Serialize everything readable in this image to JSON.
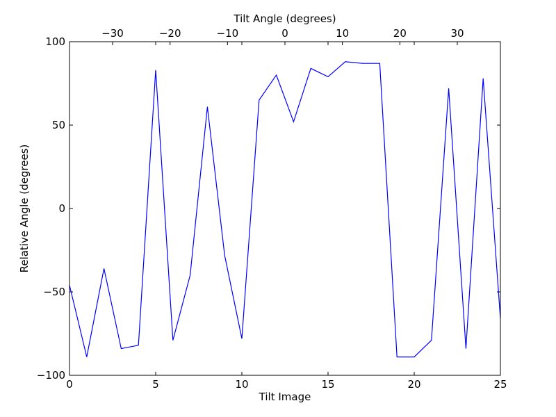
{
  "chart_data": {
    "type": "line",
    "title": "",
    "xlabel": "Tilt Image",
    "ylabel": "Relative Angle (degrees)",
    "top_xlabel": "Tilt Angle (degrees)",
    "xlim": [
      0,
      25
    ],
    "ylim": [
      -100,
      100
    ],
    "top_xlim": [
      -37.5,
      37.5
    ],
    "grid": false,
    "line_color": "#0000ff",
    "x_ticks": [
      {
        "value": 0,
        "label": "0"
      },
      {
        "value": 5,
        "label": "5"
      },
      {
        "value": 10,
        "label": "10"
      },
      {
        "value": 15,
        "label": "15"
      },
      {
        "value": 20,
        "label": "20"
      },
      {
        "value": 25,
        "label": "25"
      }
    ],
    "y_ticks": [
      {
        "value": -100,
        "label": "−100"
      },
      {
        "value": -50,
        "label": "−50"
      },
      {
        "value": 0,
        "label": "0"
      },
      {
        "value": 50,
        "label": "50"
      },
      {
        "value": 100,
        "label": "100"
      }
    ],
    "top_ticks": [
      {
        "value": -30,
        "label": "−30"
      },
      {
        "value": -20,
        "label": "−20"
      },
      {
        "value": -10,
        "label": "−10"
      },
      {
        "value": 0,
        "label": "0"
      },
      {
        "value": 10,
        "label": "10"
      },
      {
        "value": 20,
        "label": "20"
      },
      {
        "value": 30,
        "label": "30"
      }
    ],
    "series": [
      {
        "x": [
          0,
          1,
          2,
          3,
          4,
          5,
          6,
          7,
          8,
          9,
          10,
          11,
          12,
          13,
          14,
          15,
          16,
          17,
          18,
          19,
          20,
          21,
          22,
          23,
          24,
          25
        ],
        "values": [
          -46,
          -89,
          -36,
          -84,
          -82,
          83,
          -79,
          -40,
          61,
          -28,
          -78,
          65,
          80,
          52,
          84,
          79,
          88,
          87,
          87,
          -89,
          -89,
          -79,
          72,
          -84,
          78,
          -66
        ]
      }
    ]
  }
}
